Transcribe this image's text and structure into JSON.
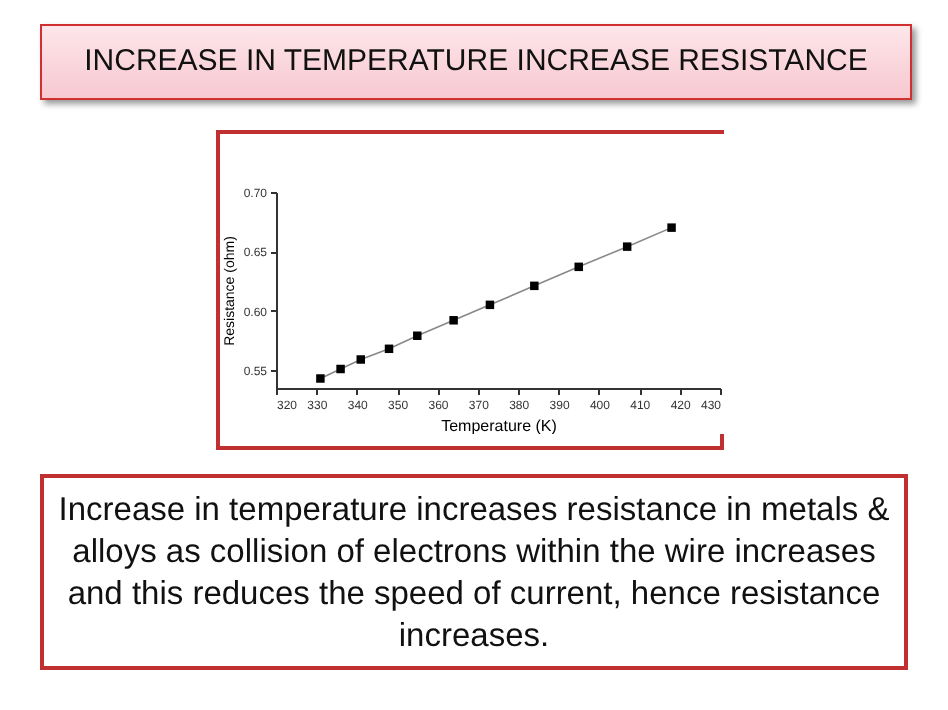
{
  "chart_data": {
    "type": "line",
    "title": "INCREASE IN TEMPERATURE INCREASE RESISTANCE",
    "xlabel": "Temperature (K)",
    "ylabel": "Resistance (ohm)",
    "x": [
      331,
      336,
      341,
      348,
      355,
      364,
      373,
      384,
      395,
      407,
      418
    ],
    "series": [
      {
        "color": "#000000",
        "values": [
          0.543,
          0.551,
          0.559,
          0.568,
          0.579,
          0.592,
          0.605,
          0.621,
          0.637,
          0.654,
          0.67
        ]
      }
    ],
    "marker": "square",
    "line_style": "solid",
    "xlim": [
      320,
      430
    ],
    "xticks": [
      320,
      330,
      340,
      350,
      360,
      370,
      380,
      390,
      400,
      410,
      420,
      430
    ],
    "ylim": [
      0.535,
      0.7
    ],
    "yticks": [
      {
        "value": 0.55,
        "label": "0.55"
      },
      {
        "value": 0.6,
        "label": "0.60"
      },
      {
        "value": 0.65,
        "label": "0.65"
      },
      {
        "value": 0.7,
        "label": "0.70"
      }
    ],
    "grid": false,
    "annotations": [
      "Increase in temperature increases resistance in metals & alloys as collision of electrons within the wire increases and this reduces the speed of current, hence resistance increases."
    ]
  }
}
